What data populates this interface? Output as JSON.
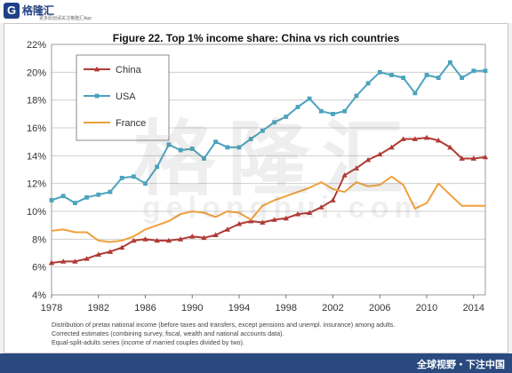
{
  "header": {
    "logo_text": "格隆汇",
    "logo_badge": "G",
    "logo_url": "gelonghui.com",
    "logo_sub": "更多原创请关注格隆汇App"
  },
  "footer": {
    "slogan": "全球视野・下注中国"
  },
  "watermark": {
    "text": "格隆汇",
    "url": "gelonghui.com"
  },
  "notes": [
    "Distribution of pretax national income (before taxes and transfers, except pensions and unempl. insurance) among adults.",
    "Corrected estimates (combining survey, fiscal, wealth and national accounts data).",
    "Equal-split-adults series (income of married couples divided by two)."
  ],
  "colors": {
    "china": "#b03a35",
    "usa": "#4ba3bd",
    "france": "#f0a03c",
    "grid": "#cfcfcf"
  },
  "chart_data": {
    "type": "line",
    "title": "Figure 22. Top 1% income share: China vs rich countries",
    "xlabel": "",
    "ylabel": "",
    "xlim": [
      1978,
      2015
    ],
    "ylim": [
      0.04,
      0.22
    ],
    "x_ticks": [
      1978,
      1982,
      1986,
      1990,
      1994,
      1998,
      2002,
      2006,
      2010,
      2014
    ],
    "y_ticks": [
      "4%",
      "6%",
      "8%",
      "10%",
      "12%",
      "14%",
      "16%",
      "18%",
      "20%",
      "22%"
    ],
    "legend_position": "top-left",
    "grid": true,
    "series": [
      {
        "name": "China",
        "color": "#b03a35",
        "marker": "triangle",
        "x": [
          1978,
          1979,
          1980,
          1981,
          1982,
          1983,
          1984,
          1985,
          1986,
          1987,
          1988,
          1989,
          1990,
          1991,
          1992,
          1993,
          1994,
          1995,
          1996,
          1997,
          1998,
          1999,
          2000,
          2001,
          2002,
          2003,
          2004,
          2005,
          2006,
          2007,
          2008,
          2009,
          2010,
          2011,
          2012,
          2013,
          2014,
          2015
        ],
        "values": [
          0.063,
          0.064,
          0.064,
          0.066,
          0.069,
          0.071,
          0.074,
          0.079,
          0.08,
          0.079,
          0.079,
          0.08,
          0.082,
          0.081,
          0.083,
          0.087,
          0.091,
          0.093,
          0.092,
          0.094,
          0.095,
          0.098,
          0.099,
          0.103,
          0.108,
          0.126,
          0.131,
          0.137,
          0.141,
          0.146,
          0.152,
          0.152,
          0.153,
          0.151,
          0.146,
          0.138,
          0.138,
          0.139
        ]
      },
      {
        "name": "USA",
        "color": "#4ba3bd",
        "marker": "square",
        "x": [
          1978,
          1979,
          1980,
          1981,
          1982,
          1983,
          1984,
          1985,
          1986,
          1987,
          1988,
          1989,
          1990,
          1991,
          1992,
          1993,
          1994,
          1995,
          1996,
          1997,
          1998,
          1999,
          2000,
          2001,
          2002,
          2003,
          2004,
          2005,
          2006,
          2007,
          2008,
          2009,
          2010,
          2011,
          2012,
          2013,
          2014,
          2015
        ],
        "values": [
          0.108,
          0.111,
          0.106,
          0.11,
          0.112,
          0.114,
          0.124,
          0.125,
          0.12,
          0.132,
          0.148,
          0.144,
          0.145,
          0.138,
          0.15,
          0.146,
          0.146,
          0.152,
          0.158,
          0.164,
          0.168,
          0.175,
          0.181,
          0.172,
          0.17,
          0.172,
          0.183,
          0.192,
          0.2,
          0.198,
          0.196,
          0.185,
          0.198,
          0.196,
          0.207,
          0.196,
          0.201,
          0.201
        ]
      },
      {
        "name": "France",
        "color": "#f0a03c",
        "marker": "none",
        "x": [
          1978,
          1979,
          1980,
          1981,
          1982,
          1983,
          1984,
          1985,
          1986,
          1987,
          1988,
          1989,
          1990,
          1991,
          1992,
          1993,
          1994,
          1995,
          1996,
          1997,
          1998,
          1999,
          2000,
          2001,
          2002,
          2003,
          2004,
          2005,
          2006,
          2007,
          2008,
          2009,
          2010,
          2011,
          2012,
          2013,
          2014,
          2015
        ],
        "values": [
          0.086,
          0.087,
          0.085,
          0.085,
          0.079,
          0.078,
          0.079,
          0.082,
          0.087,
          0.09,
          0.093,
          0.098,
          0.1,
          0.099,
          0.096,
          0.1,
          0.099,
          0.094,
          0.104,
          0.108,
          0.111,
          0.114,
          0.117,
          0.121,
          0.116,
          0.114,
          0.121,
          0.118,
          0.119,
          0.125,
          0.119,
          0.102,
          0.106,
          0.12,
          0.112,
          0.104,
          0.104,
          0.104
        ]
      }
    ]
  }
}
